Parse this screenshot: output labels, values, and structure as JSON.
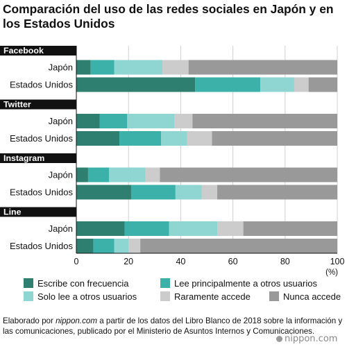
{
  "title": "Comparación del uso de las redes sociales en Japón y en los Estados Unidos",
  "source": {
    "pre": "Elaborado por ",
    "link": "nippon.com",
    "post": " a partir de los datos del Libro Blanco de 2018 sobre la información y las comunicaciones, publicado por el Ministerio de Asuntos Internos y Comunicaciones."
  },
  "brand": "nippon.com",
  "chart_data": {
    "type": "bar",
    "orientation": "horizontal",
    "stacked": true,
    "groups": [
      {
        "name": "Facebook",
        "rows": [
          {
            "label": "Japón",
            "values": [
              5.5,
              9.0,
              18.5,
              10.0,
              57.0
            ]
          },
          {
            "label": "Estados Unidos",
            "values": [
              45.5,
              25.0,
              13.0,
              5.5,
              11.0
            ]
          }
        ]
      },
      {
        "name": "Twitter",
        "rows": [
          {
            "label": "Japón",
            "values": [
              9.0,
              10.5,
              18.0,
              7.0,
              55.5
            ]
          },
          {
            "label": "Estados Unidos",
            "values": [
              16.5,
              16.0,
              10.0,
              9.5,
              48.0
            ]
          }
        ]
      },
      {
        "name": "Instagram",
        "rows": [
          {
            "label": "Japón",
            "values": [
              4.5,
              8.0,
              14.0,
              5.5,
              68.0
            ]
          },
          {
            "label": "Estados Unidos",
            "values": [
              21.0,
              17.0,
              10.0,
              6.0,
              46.0
            ]
          }
        ]
      },
      {
        "name": "Line",
        "rows": [
          {
            "label": "Japón",
            "values": [
              18.5,
              17.0,
              18.5,
              10.0,
              36.0
            ]
          },
          {
            "label": "Estados Unidos",
            "values": [
              6.5,
              8.0,
              5.5,
              4.5,
              75.5
            ]
          }
        ]
      }
    ],
    "series": [
      {
        "name": "Escribe con frecuencia",
        "color": "#2e7f70"
      },
      {
        "name": "Lee principalmente a otros usuarios",
        "color": "#3bb1aa"
      },
      {
        "name": "Solo lee a otros usuarios",
        "color": "#8fd5d1"
      },
      {
        "name": "Raramente accede",
        "color": "#cccccc"
      },
      {
        "name": "Nunca accede",
        "color": "#999999"
      }
    ],
    "xlim": [
      0,
      100
    ],
    "xticks": [
      0,
      20,
      40,
      60,
      80,
      100
    ],
    "xunit": "(%)",
    "grid": true,
    "legend_position": "bottom"
  }
}
